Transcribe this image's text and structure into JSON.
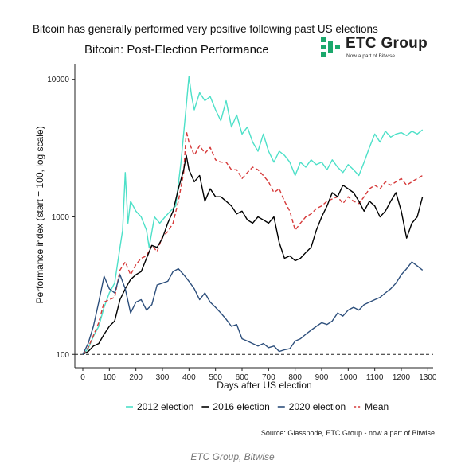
{
  "headline": "Bitcoin has generally performed very positive following past US elections",
  "logo": {
    "name": "ETC Group",
    "tagline": "Now a part of Bitwise",
    "color": "#1ba86c"
  },
  "source": "Source: Glassnode, ETC Group - now a part of Bitwise",
  "caption": "ETC Group, Bitwise",
  "chart_data": {
    "type": "line",
    "title": "Bitcoin: Post-Election Performance",
    "xlabel": "Days after US election",
    "ylabel": "Performance index (start = 100, log scale)",
    "x_scale": "linear",
    "y_scale": "log",
    "xlim": [
      -30,
      1320
    ],
    "ylim": [
      80,
      13000
    ],
    "x_ticks": [
      0,
      100,
      200,
      300,
      400,
      500,
      600,
      700,
      800,
      900,
      1000,
      1100,
      1200,
      1300
    ],
    "y_ticks": [
      100,
      1000,
      10000
    ],
    "reference_line": {
      "y": 100,
      "style": "dashed"
    },
    "grid": false,
    "legend": "bottom",
    "series": [
      {
        "name": "2012 election",
        "color": "#4de0c8",
        "dash": "solid",
        "points": [
          [
            0,
            100
          ],
          [
            20,
            110
          ],
          [
            40,
            135
          ],
          [
            60,
            160
          ],
          [
            80,
            220
          ],
          [
            100,
            280
          ],
          [
            120,
            330
          ],
          [
            140,
            600
          ],
          [
            150,
            800
          ],
          [
            160,
            2100
          ],
          [
            170,
            900
          ],
          [
            180,
            1300
          ],
          [
            200,
            1100
          ],
          [
            220,
            1000
          ],
          [
            240,
            800
          ],
          [
            250,
            600
          ],
          [
            270,
            1000
          ],
          [
            290,
            900
          ],
          [
            310,
            1000
          ],
          [
            330,
            1100
          ],
          [
            350,
            1200
          ],
          [
            370,
            2500
          ],
          [
            390,
            6500
          ],
          [
            400,
            10500
          ],
          [
            410,
            7500
          ],
          [
            420,
            6000
          ],
          [
            440,
            8000
          ],
          [
            460,
            7000
          ],
          [
            480,
            7500
          ],
          [
            500,
            6000
          ],
          [
            520,
            5000
          ],
          [
            540,
            7000
          ],
          [
            560,
            4500
          ],
          [
            580,
            5500
          ],
          [
            600,
            4000
          ],
          [
            620,
            4500
          ],
          [
            640,
            3500
          ],
          [
            660,
            3000
          ],
          [
            680,
            4000
          ],
          [
            700,
            3000
          ],
          [
            720,
            2500
          ],
          [
            740,
            3000
          ],
          [
            760,
            2800
          ],
          [
            780,
            2500
          ],
          [
            800,
            2000
          ],
          [
            820,
            2500
          ],
          [
            840,
            2300
          ],
          [
            860,
            2600
          ],
          [
            880,
            2400
          ],
          [
            900,
            2500
          ],
          [
            920,
            2200
          ],
          [
            940,
            2600
          ],
          [
            960,
            2300
          ],
          [
            980,
            2100
          ],
          [
            1000,
            2400
          ],
          [
            1020,
            2200
          ],
          [
            1040,
            2000
          ],
          [
            1060,
            2500
          ],
          [
            1080,
            3200
          ],
          [
            1100,
            4000
          ],
          [
            1120,
            3500
          ],
          [
            1140,
            4200
          ],
          [
            1160,
            3800
          ],
          [
            1180,
            4000
          ],
          [
            1200,
            4100
          ],
          [
            1220,
            3900
          ],
          [
            1240,
            4200
          ],
          [
            1260,
            4000
          ],
          [
            1280,
            4300
          ]
        ]
      },
      {
        "name": "2016 election",
        "color": "#000000",
        "dash": "solid",
        "points": [
          [
            0,
            100
          ],
          [
            20,
            105
          ],
          [
            40,
            115
          ],
          [
            60,
            120
          ],
          [
            80,
            140
          ],
          [
            100,
            160
          ],
          [
            120,
            175
          ],
          [
            140,
            250
          ],
          [
            160,
            300
          ],
          [
            180,
            350
          ],
          [
            200,
            380
          ],
          [
            220,
            400
          ],
          [
            240,
            500
          ],
          [
            260,
            620
          ],
          [
            280,
            600
          ],
          [
            300,
            700
          ],
          [
            320,
            900
          ],
          [
            340,
            1100
          ],
          [
            360,
            1600
          ],
          [
            380,
            2200
          ],
          [
            390,
            2800
          ],
          [
            400,
            2200
          ],
          [
            420,
            1800
          ],
          [
            440,
            2000
          ],
          [
            460,
            1300
          ],
          [
            480,
            1600
          ],
          [
            500,
            1400
          ],
          [
            520,
            1400
          ],
          [
            540,
            1300
          ],
          [
            560,
            1200
          ],
          [
            580,
            1050
          ],
          [
            600,
            1100
          ],
          [
            620,
            950
          ],
          [
            640,
            900
          ],
          [
            660,
            1000
          ],
          [
            680,
            950
          ],
          [
            700,
            900
          ],
          [
            720,
            1000
          ],
          [
            740,
            650
          ],
          [
            760,
            500
          ],
          [
            780,
            520
          ],
          [
            800,
            480
          ],
          [
            820,
            500
          ],
          [
            840,
            550
          ],
          [
            860,
            600
          ],
          [
            880,
            800
          ],
          [
            900,
            1000
          ],
          [
            920,
            1200
          ],
          [
            940,
            1500
          ],
          [
            960,
            1400
          ],
          [
            980,
            1700
          ],
          [
            1000,
            1600
          ],
          [
            1020,
            1500
          ],
          [
            1040,
            1300
          ],
          [
            1060,
            1100
          ],
          [
            1080,
            1300
          ],
          [
            1100,
            1200
          ],
          [
            1120,
            1000
          ],
          [
            1140,
            1100
          ],
          [
            1160,
            1300
          ],
          [
            1180,
            1500
          ],
          [
            1200,
            1100
          ],
          [
            1220,
            700
          ],
          [
            1240,
            900
          ],
          [
            1260,
            1000
          ],
          [
            1280,
            1400
          ]
        ]
      },
      {
        "name": "2020 election",
        "color": "#2d4f7c",
        "dash": "solid",
        "points": [
          [
            0,
            100
          ],
          [
            20,
            120
          ],
          [
            40,
            160
          ],
          [
            60,
            240
          ],
          [
            80,
            370
          ],
          [
            100,
            300
          ],
          [
            120,
            280
          ],
          [
            140,
            380
          ],
          [
            160,
            300
          ],
          [
            180,
            200
          ],
          [
            200,
            240
          ],
          [
            220,
            250
          ],
          [
            240,
            210
          ],
          [
            260,
            230
          ],
          [
            280,
            320
          ],
          [
            300,
            330
          ],
          [
            320,
            340
          ],
          [
            340,
            400
          ],
          [
            360,
            420
          ],
          [
            380,
            380
          ],
          [
            400,
            340
          ],
          [
            420,
            300
          ],
          [
            440,
            250
          ],
          [
            460,
            280
          ],
          [
            480,
            240
          ],
          [
            500,
            220
          ],
          [
            520,
            200
          ],
          [
            540,
            180
          ],
          [
            560,
            160
          ],
          [
            580,
            165
          ],
          [
            600,
            130
          ],
          [
            620,
            125
          ],
          [
            640,
            120
          ],
          [
            660,
            115
          ],
          [
            680,
            120
          ],
          [
            700,
            112
          ],
          [
            720,
            115
          ],
          [
            740,
            105
          ],
          [
            760,
            108
          ],
          [
            780,
            110
          ],
          [
            800,
            125
          ],
          [
            820,
            130
          ],
          [
            840,
            140
          ],
          [
            860,
            150
          ],
          [
            880,
            160
          ],
          [
            900,
            170
          ],
          [
            920,
            165
          ],
          [
            940,
            175
          ],
          [
            960,
            200
          ],
          [
            980,
            190
          ],
          [
            1000,
            210
          ],
          [
            1020,
            220
          ],
          [
            1040,
            210
          ],
          [
            1060,
            230
          ],
          [
            1080,
            240
          ],
          [
            1100,
            250
          ],
          [
            1120,
            260
          ],
          [
            1140,
            280
          ],
          [
            1160,
            300
          ],
          [
            1180,
            330
          ],
          [
            1200,
            380
          ],
          [
            1220,
            420
          ],
          [
            1240,
            470
          ],
          [
            1260,
            440
          ],
          [
            1280,
            410
          ]
        ]
      },
      {
        "name": "Mean",
        "color": "#d63a3a",
        "dash": "dashed",
        "points": [
          [
            0,
            100
          ],
          [
            20,
            112
          ],
          [
            40,
            137
          ],
          [
            60,
            170
          ],
          [
            80,
            240
          ],
          [
            100,
            250
          ],
          [
            120,
            260
          ],
          [
            140,
            410
          ],
          [
            160,
            470
          ],
          [
            180,
            380
          ],
          [
            200,
            450
          ],
          [
            220,
            500
          ],
          [
            240,
            520
          ],
          [
            260,
            620
          ],
          [
            280,
            560
          ],
          [
            300,
            720
          ],
          [
            320,
            780
          ],
          [
            340,
            900
          ],
          [
            360,
            1300
          ],
          [
            380,
            2100
          ],
          [
            390,
            4200
          ],
          [
            400,
            3500
          ],
          [
            420,
            2800
          ],
          [
            440,
            3300
          ],
          [
            460,
            2900
          ],
          [
            480,
            3200
          ],
          [
            500,
            2600
          ],
          [
            520,
            2500
          ],
          [
            540,
            2500
          ],
          [
            560,
            2200
          ],
          [
            580,
            2200
          ],
          [
            600,
            1900
          ],
          [
            620,
            2100
          ],
          [
            640,
            2300
          ],
          [
            660,
            2200
          ],
          [
            680,
            2000
          ],
          [
            700,
            1800
          ],
          [
            720,
            1500
          ],
          [
            740,
            1600
          ],
          [
            760,
            1300
          ],
          [
            780,
            1100
          ],
          [
            800,
            800
          ],
          [
            820,
            900
          ],
          [
            840,
            1000
          ],
          [
            860,
            1050
          ],
          [
            880,
            1150
          ],
          [
            900,
            1200
          ],
          [
            920,
            1300
          ],
          [
            940,
            1350
          ],
          [
            960,
            1400
          ],
          [
            980,
            1250
          ],
          [
            1000,
            1400
          ],
          [
            1020,
            1300
          ],
          [
            1040,
            1250
          ],
          [
            1060,
            1400
          ],
          [
            1080,
            1600
          ],
          [
            1100,
            1700
          ],
          [
            1120,
            1600
          ],
          [
            1140,
            1800
          ],
          [
            1160,
            1700
          ],
          [
            1180,
            1800
          ],
          [
            1200,
            1900
          ],
          [
            1220,
            1700
          ],
          [
            1240,
            1800
          ],
          [
            1260,
            1900
          ],
          [
            1280,
            2000
          ]
        ]
      }
    ]
  }
}
